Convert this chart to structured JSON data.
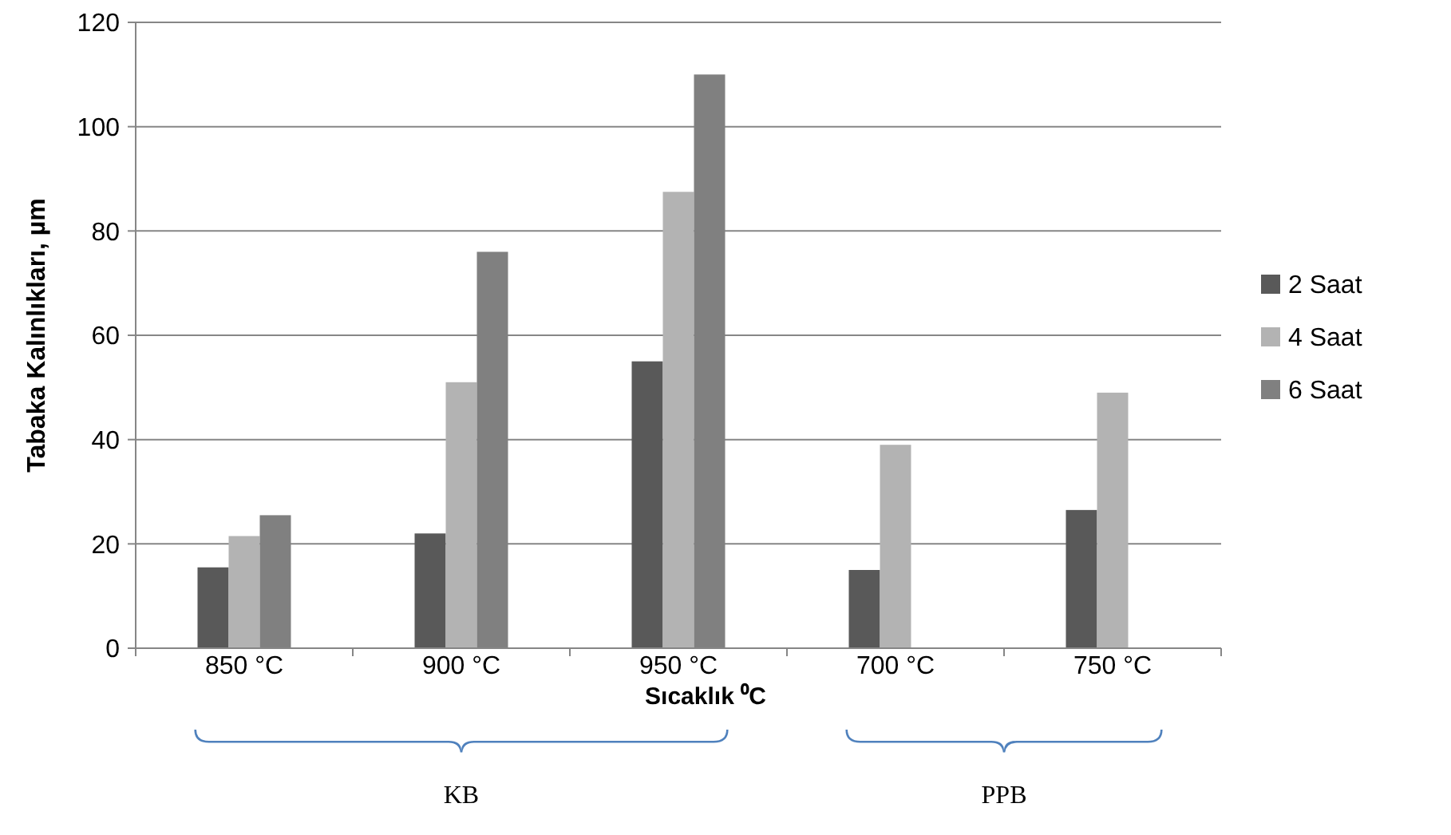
{
  "chart_data": {
    "type": "bar",
    "xlabel": "Sıcaklık ⁰C",
    "ylabel": "Tabaka Kalınlıkları, µm",
    "categories": [
      "850 °C",
      "900 °C",
      "950 °C",
      "700 °C",
      "750 °C"
    ],
    "series": [
      {
        "name": "2 Saat",
        "color": "#595959",
        "values": [
          15.5,
          22,
          55,
          15,
          26.5
        ]
      },
      {
        "name": "4 Saat",
        "color": "#b3b3b3",
        "values": [
          21.5,
          51,
          87.5,
          39,
          49
        ]
      },
      {
        "name": "6 Saat",
        "color": "#808080",
        "values": [
          25.5,
          76,
          110,
          null,
          null
        ]
      }
    ],
    "ylim": [
      0,
      120
    ],
    "yticks": [
      0,
      20,
      40,
      60,
      80,
      100,
      120
    ],
    "grid": "y",
    "legend": "right",
    "annotations": [
      "KB",
      "PPB"
    ]
  }
}
